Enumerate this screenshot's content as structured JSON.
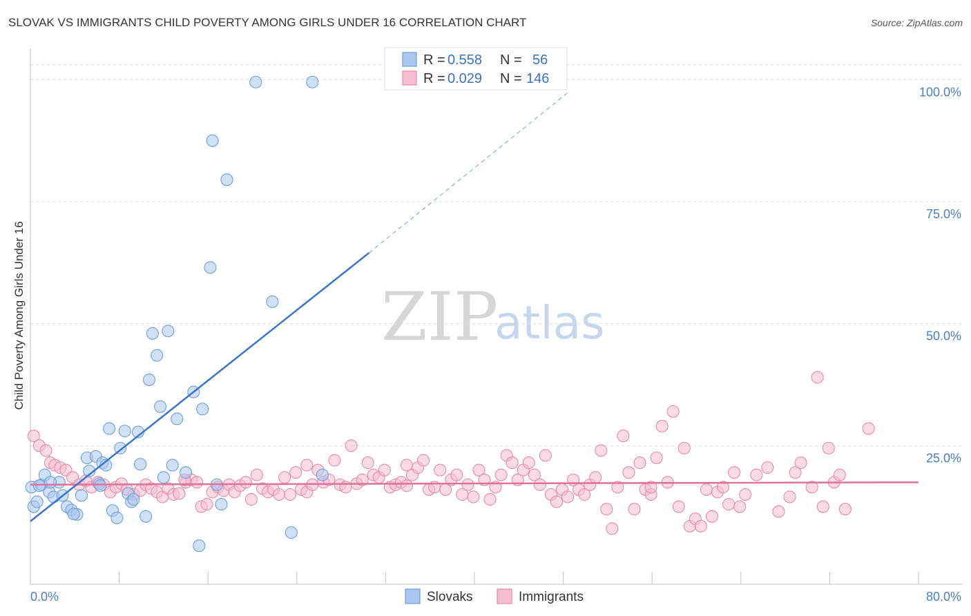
{
  "chart_data": {
    "type": "scatter",
    "title": "SLOVAK VS IMMIGRANTS CHILD POVERTY AMONG GIRLS UNDER 16 CORRELATION CHART",
    "source": "Source: ZipAtlas.com",
    "ylabel": "Child Poverty Among Girls Under 16",
    "xlabel": "",
    "xlim": [
      0,
      80
    ],
    "ylim": [
      0,
      105
    ],
    "x_tick_labels": [
      "0.0%",
      "80.0%"
    ],
    "y_ticks": [
      25,
      50,
      75,
      100
    ],
    "y_tick_labels": [
      "25.0%",
      "50.0%",
      "75.0%",
      "100.0%"
    ],
    "grid": true,
    "watermark": {
      "part1": "ZIP",
      "part2": "atlas"
    },
    "legend": {
      "placement": "top-center",
      "rows": [
        {
          "r_label": "R = ",
          "r_value": "0.558",
          "n_label": "N = ",
          "n_value": "56"
        },
        {
          "r_label": "R = ",
          "r_value": "0.029",
          "n_label": "N = ",
          "n_value": "146"
        }
      ]
    },
    "bottom_legend": [
      "Slovaks",
      "Immigrants"
    ],
    "colors": {
      "slovak_fill": "#a9c6ee",
      "slovak_stroke": "#6f9ed8",
      "slovak_line": "#3a74cc",
      "immigrant_fill": "#f6bdd0",
      "immigrant_stroke": "#e88aab",
      "immigrant_line": "#e0719b",
      "tick_text": "#4a7fc7"
    },
    "series": [
      {
        "name": "Slovaks",
        "trend": {
          "x0": 0,
          "y0": 9.5,
          "x1": 30.5,
          "y1": 64.5,
          "dash_to_x": 48.5,
          "dash_to_y": 97.5
        },
        "points": [
          [
            0.1,
            16.5
          ],
          [
            0.3,
            12.5
          ],
          [
            0.6,
            13.5
          ],
          [
            1.0,
            17.0
          ],
          [
            1.3,
            19.0
          ],
          [
            1.7,
            15.5
          ],
          [
            2.1,
            14.5
          ],
          [
            2.6,
            17.5
          ],
          [
            2.9,
            14.8
          ],
          [
            3.3,
            12.5
          ],
          [
            3.7,
            11.8
          ],
          [
            4.2,
            10.9
          ],
          [
            4.6,
            14.8
          ],
          [
            5.1,
            22.5
          ],
          [
            5.3,
            19.8
          ],
          [
            5.9,
            22.8
          ],
          [
            6.2,
            17.2
          ],
          [
            6.5,
            21.5
          ],
          [
            6.8,
            21.0
          ],
          [
            7.1,
            28.5
          ],
          [
            7.4,
            11.7
          ],
          [
            7.8,
            10.2
          ],
          [
            8.1,
            24.5
          ],
          [
            8.5,
            28.0
          ],
          [
            8.8,
            15.2
          ],
          [
            9.1,
            13.5
          ],
          [
            9.3,
            14.0
          ],
          [
            9.7,
            27.8
          ],
          [
            9.9,
            21.2
          ],
          [
            10.4,
            10.5
          ],
          [
            10.7,
            38.5
          ],
          [
            11.0,
            48.0
          ],
          [
            11.4,
            43.5
          ],
          [
            11.7,
            33.0
          ],
          [
            12.0,
            18.5
          ],
          [
            12.4,
            48.5
          ],
          [
            12.8,
            21.0
          ],
          [
            13.2,
            30.5
          ],
          [
            14.0,
            19.5
          ],
          [
            14.7,
            36.0
          ],
          [
            15.2,
            4.5
          ],
          [
            15.5,
            32.5
          ],
          [
            16.2,
            61.5
          ],
          [
            16.4,
            87.5
          ],
          [
            16.8,
            17.0
          ],
          [
            17.2,
            13.0
          ],
          [
            17.7,
            79.5
          ],
          [
            20.3,
            99.5
          ],
          [
            21.8,
            54.5
          ],
          [
            23.5,
            7.2
          ],
          [
            25.4,
            99.5
          ],
          [
            26.3,
            19.0
          ],
          [
            6.3,
            16.8
          ],
          [
            3.9,
            11.0
          ],
          [
            1.8,
            17.5
          ],
          [
            0.8,
            16.8
          ]
        ]
      },
      {
        "name": "Immigrants",
        "trend": {
          "x0": 0,
          "y0": 17.0,
          "x1": 80,
          "y1": 17.5
        },
        "points": [
          [
            0.3,
            27.0
          ],
          [
            0.8,
            25.0
          ],
          [
            1.4,
            24.0
          ],
          [
            1.8,
            21.5
          ],
          [
            2.2,
            21.0
          ],
          [
            2.7,
            20.5
          ],
          [
            3.2,
            20.0
          ],
          [
            3.8,
            18.5
          ],
          [
            4.4,
            17.0
          ],
          [
            5.0,
            17.8
          ],
          [
            5.5,
            16.5
          ],
          [
            6.1,
            17.5
          ],
          [
            6.6,
            17.0
          ],
          [
            7.2,
            15.5
          ],
          [
            7.7,
            16.5
          ],
          [
            8.2,
            17.2
          ],
          [
            8.7,
            16.0
          ],
          [
            9.3,
            15.0
          ],
          [
            9.9,
            15.8
          ],
          [
            10.4,
            17.0
          ],
          [
            10.9,
            16.2
          ],
          [
            11.4,
            15.5
          ],
          [
            11.9,
            14.5
          ],
          [
            12.4,
            16.2
          ],
          [
            12.9,
            15.0
          ],
          [
            13.4,
            15.2
          ],
          [
            14.0,
            17.5
          ],
          [
            14.5,
            18.0
          ],
          [
            15.0,
            17.5
          ],
          [
            15.4,
            12.5
          ],
          [
            15.9,
            13.0
          ],
          [
            16.4,
            15.5
          ],
          [
            16.9,
            16.5
          ],
          [
            17.4,
            15.8
          ],
          [
            17.9,
            17.0
          ],
          [
            18.4,
            15.5
          ],
          [
            18.9,
            16.8
          ],
          [
            19.4,
            17.5
          ],
          [
            19.9,
            14.0
          ],
          [
            20.4,
            19.0
          ],
          [
            20.9,
            16.2
          ],
          [
            21.4,
            15.5
          ],
          [
            21.9,
            16.0
          ],
          [
            22.4,
            15.0
          ],
          [
            22.9,
            18.5
          ],
          [
            23.4,
            15.0
          ],
          [
            23.9,
            19.5
          ],
          [
            24.4,
            16.0
          ],
          [
            24.9,
            15.5
          ],
          [
            25.4,
            17.0
          ],
          [
            25.9,
            20.0
          ],
          [
            26.4,
            17.5
          ],
          [
            26.9,
            18.0
          ],
          [
            27.4,
            22.0
          ],
          [
            27.9,
            17.0
          ],
          [
            28.4,
            16.5
          ],
          [
            28.9,
            25.0
          ],
          [
            29.4,
            17.2
          ],
          [
            29.9,
            18.0
          ],
          [
            30.4,
            21.5
          ],
          [
            30.9,
            19.0
          ],
          [
            31.4,
            18.5
          ],
          [
            31.9,
            20.0
          ],
          [
            32.4,
            16.5
          ],
          [
            32.9,
            17.0
          ],
          [
            33.4,
            17.5
          ],
          [
            33.9,
            16.8
          ],
          [
            34.4,
            19.0
          ],
          [
            34.9,
            20.5
          ],
          [
            35.4,
            22.0
          ],
          [
            35.9,
            16.0
          ],
          [
            36.4,
            16.5
          ],
          [
            36.9,
            20.0
          ],
          [
            37.4,
            16.0
          ],
          [
            37.9,
            18.0
          ],
          [
            38.4,
            19.0
          ],
          [
            38.9,
            15.0
          ],
          [
            39.4,
            17.0
          ],
          [
            39.9,
            14.5
          ],
          [
            40.4,
            20.0
          ],
          [
            40.9,
            18.0
          ],
          [
            41.4,
            14.0
          ],
          [
            41.9,
            16.5
          ],
          [
            42.4,
            19.0
          ],
          [
            42.9,
            23.0
          ],
          [
            43.4,
            21.5
          ],
          [
            43.9,
            18.0
          ],
          [
            44.4,
            20.0
          ],
          [
            44.9,
            21.5
          ],
          [
            45.4,
            19.0
          ],
          [
            45.9,
            17.0
          ],
          [
            46.4,
            23.0
          ],
          [
            46.9,
            15.0
          ],
          [
            47.4,
            13.5
          ],
          [
            47.9,
            16.0
          ],
          [
            48.4,
            14.5
          ],
          [
            48.9,
            18.0
          ],
          [
            49.4,
            16.0
          ],
          [
            49.9,
            15.0
          ],
          [
            50.4,
            17.0
          ],
          [
            50.9,
            18.5
          ],
          [
            51.4,
            24.0
          ],
          [
            51.9,
            12.0
          ],
          [
            52.4,
            8.0
          ],
          [
            52.9,
            16.5
          ],
          [
            53.4,
            27.0
          ],
          [
            53.9,
            19.5
          ],
          [
            54.4,
            12.0
          ],
          [
            54.9,
            21.5
          ],
          [
            55.4,
            16.0
          ],
          [
            55.9,
            15.0
          ],
          [
            56.4,
            22.5
          ],
          [
            56.9,
            29.0
          ],
          [
            57.4,
            17.5
          ],
          [
            57.9,
            32.0
          ],
          [
            58.4,
            12.5
          ],
          [
            58.9,
            24.5
          ],
          [
            59.4,
            8.5
          ],
          [
            59.9,
            10.0
          ],
          [
            60.4,
            8.5
          ],
          [
            60.9,
            16.0
          ],
          [
            61.4,
            10.5
          ],
          [
            61.9,
            15.5
          ],
          [
            62.4,
            16.5
          ],
          [
            62.9,
            13.0
          ],
          [
            63.4,
            19.5
          ],
          [
            63.9,
            12.5
          ],
          [
            64.4,
            15.0
          ],
          [
            65.4,
            19.0
          ],
          [
            66.4,
            20.5
          ],
          [
            67.4,
            11.5
          ],
          [
            68.4,
            14.5
          ],
          [
            68.9,
            19.5
          ],
          [
            69.4,
            21.5
          ],
          [
            70.4,
            16.5
          ],
          [
            70.9,
            39.0
          ],
          [
            71.4,
            12.5
          ],
          [
            71.9,
            24.5
          ],
          [
            72.4,
            17.5
          ],
          [
            72.9,
            19.0
          ],
          [
            73.4,
            12.0
          ],
          [
            75.5,
            28.5
          ],
          [
            55.9,
            16.5
          ],
          [
            33.9,
            21.0
          ],
          [
            24.9,
            21.0
          ],
          [
            13.9,
            18.0
          ]
        ]
      }
    ]
  }
}
